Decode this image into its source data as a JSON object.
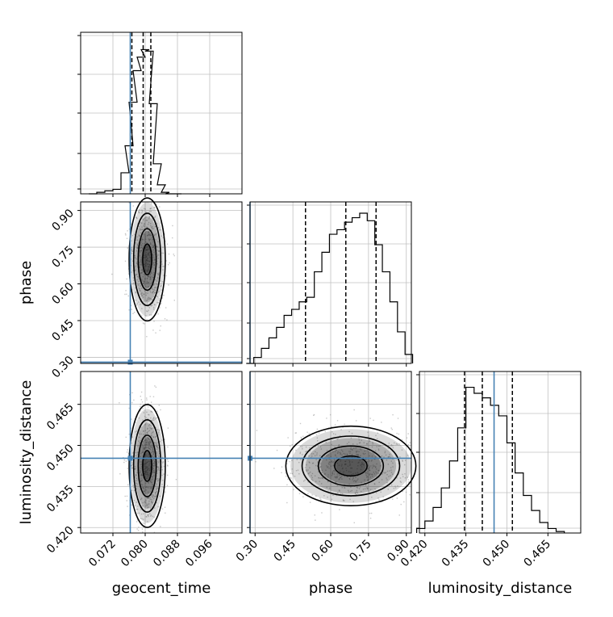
{
  "chart_data": [
    {
      "type": "line",
      "panel": "geocent_time histogram",
      "x_param": "geocent_time",
      "xlim": [
        0.064,
        0.104
      ],
      "ylim": [
        0,
        1
      ],
      "x": [
        0.067,
        0.069,
        0.071,
        0.073,
        0.075,
        0.076,
        0.077,
        0.078,
        0.079,
        0.08,
        0.081,
        0.082,
        0.083,
        0.084,
        0.085,
        0.086,
        0.088
      ],
      "values": [
        0.0,
        0.01,
        0.02,
        0.03,
        0.14,
        0.32,
        0.61,
        0.82,
        0.91,
        0.96,
        0.95,
        0.6,
        0.2,
        0.06,
        0.01,
        0.0,
        0.0
      ],
      "quantiles": [
        0.0767,
        0.0795,
        0.0814
      ],
      "truth": 0.0763,
      "grid": true
    },
    {
      "type": "heatmap",
      "panel": "phase vs geocent_time",
      "x_param": "geocent_time",
      "y_param": "phase",
      "xlim": [
        0.064,
        0.104
      ],
      "ylim": [
        0.275,
        0.935
      ],
      "center": [
        0.0805,
        0.7
      ],
      "truth": [
        0.0763,
        0.28
      ],
      "contour_levels": 4,
      "grid": true
    },
    {
      "type": "line",
      "panel": "phase histogram",
      "x_param": "phase",
      "xlim": [
        0.28,
        0.92
      ],
      "ylim": [
        0,
        1
      ],
      "x": [
        0.28,
        0.31,
        0.34,
        0.37,
        0.4,
        0.43,
        0.46,
        0.49,
        0.52,
        0.55,
        0.58,
        0.61,
        0.64,
        0.67,
        0.7,
        0.73,
        0.76,
        0.79,
        0.82,
        0.85,
        0.88,
        0.91
      ],
      "values": [
        0.0,
        0.04,
        0.1,
        0.17,
        0.24,
        0.32,
        0.36,
        0.41,
        0.44,
        0.61,
        0.74,
        0.86,
        0.89,
        0.94,
        0.97,
        1.0,
        0.95,
        0.79,
        0.61,
        0.41,
        0.21,
        0.06
      ],
      "quantiles": [
        0.5,
        0.66,
        0.78
      ],
      "truth": 0.28,
      "grid": true
    },
    {
      "type": "heatmap",
      "panel": "luminosity_distance vs geocent_time",
      "x_param": "geocent_time",
      "y_param": "luminosity_distance",
      "xlim": [
        0.064,
        0.104
      ],
      "ylim": [
        0.418,
        0.477
      ],
      "center": [
        0.0805,
        0.4425
      ],
      "truth": [
        0.0763,
        0.4453
      ],
      "contour_levels": 4,
      "grid": true
    },
    {
      "type": "heatmap",
      "panel": "luminosity_distance vs phase",
      "x_param": "phase",
      "y_param": "luminosity_distance",
      "xlim": [
        0.28,
        0.92
      ],
      "ylim": [
        0.418,
        0.477
      ],
      "center": [
        0.68,
        0.4425
      ],
      "truth": [
        0.28,
        0.4453
      ],
      "contour_levels": 4,
      "grid": true
    },
    {
      "type": "line",
      "panel": "luminosity_distance histogram",
      "x_param": "luminosity_distance",
      "xlim": [
        0.418,
        0.477
      ],
      "ylim": [
        0,
        1
      ],
      "x": [
        0.4185,
        0.4215,
        0.4245,
        0.4275,
        0.4305,
        0.4335,
        0.4365,
        0.4395,
        0.4425,
        0.4455,
        0.4485,
        0.4515,
        0.4545,
        0.4575,
        0.4605,
        0.4635,
        0.4665,
        0.4695
      ],
      "values": [
        0.03,
        0.08,
        0.17,
        0.3,
        0.48,
        0.7,
        0.97,
        0.93,
        0.9,
        0.85,
        0.78,
        0.6,
        0.4,
        0.25,
        0.15,
        0.07,
        0.03,
        0.01
      ],
      "quantiles": [
        0.4345,
        0.441,
        0.452
      ],
      "truth": 0.4453,
      "grid": true
    }
  ],
  "axes": {
    "geocent_time": {
      "label": "geocent_time",
      "ticks": [
        "0.072",
        "0.080",
        "0.088",
        "0.096"
      ],
      "tick_values": [
        0.072,
        0.08,
        0.088,
        0.096
      ]
    },
    "phase": {
      "label": "phase",
      "ticks": [
        "0.30",
        "0.45",
        "0.60",
        "0.75",
        "0.90"
      ],
      "tick_values": [
        0.3,
        0.45,
        0.6,
        0.75,
        0.9
      ]
    },
    "luminosity_distance": {
      "label": "luminosity_distance",
      "ticks": [
        "0.420",
        "0.435",
        "0.450",
        "0.465"
      ],
      "tick_values": [
        0.42,
        0.435,
        0.45,
        0.465
      ]
    }
  },
  "colors": {
    "truth": "#4682b4",
    "histogram": "#000000",
    "density": "#000000",
    "grid": "#c0c0c0"
  }
}
